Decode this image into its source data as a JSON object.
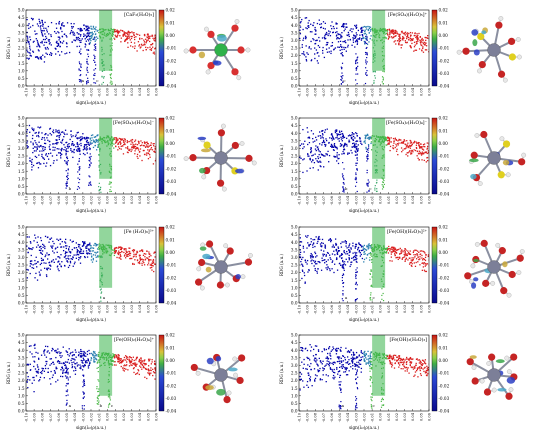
{
  "chart_data": [
    {
      "type": "scatter",
      "panel_label": "[CaF₂(H₂O)₅]",
      "xlabel": "sign(λ₂)ρ(a.u.)",
      "ylabel": "RDG (a.u.)",
      "xlim": [
        -0.1,
        0.06
      ],
      "ylim": [
        0.0,
        5.0
      ],
      "colorbar": {
        "range": [
          -0.04,
          0.02
        ],
        "ticks": [
          "0.02",
          "0.01",
          "0.00",
          "-0.01",
          "-0.02",
          "-0.03",
          "-0.04"
        ]
      },
      "spike_x": [
        -0.034,
        -0.025,
        -0.016,
        -0.006,
        0.004
      ],
      "annotations": [
        "a",
        "c"
      ],
      "colors": [
        "#0000aa",
        "#4cb848",
        "#d91f1f"
      ]
    },
    {
      "type": "scatter",
      "panel_label": "[Fe(SO₄)(H₂O)₅]⁺",
      "xlabel": "sign(λ₂)ρ(a.u.)",
      "ylabel": "RDG (a.u.)",
      "xlim": [
        -0.1,
        0.06
      ],
      "ylim": [
        0.0,
        5.0
      ],
      "colorbar": {
        "range": [
          -0.04,
          0.02
        ],
        "ticks": [
          "0.02",
          "0.01",
          "0.00",
          "-0.01",
          "-0.02",
          "-0.03",
          "-0.04"
        ]
      },
      "spike_x": [
        -0.048,
        -0.03,
        -0.018,
        -0.008,
        0.003
      ],
      "annotations": [
        "c"
      ],
      "colors": [
        "#0000aa",
        "#4cb848",
        "#d91f1f"
      ]
    },
    {
      "type": "scatter",
      "panel_label": "[Fe(SO₄)₂(H₂O)₄]⁻",
      "xlabel": "sign(λ₂)ρ(a.u.)",
      "ylabel": "RDG (a.u.)",
      "xlim": [
        -0.1,
        0.06
      ],
      "ylim": [
        0.0,
        5.0
      ],
      "colorbar": {
        "range": [
          -0.04,
          0.02
        ],
        "ticks": [
          "0.02",
          "0.01",
          "0.00",
          "-0.01",
          "-0.02",
          "-0.03",
          "-0.04"
        ]
      },
      "spike_x": [
        -0.05,
        -0.036,
        -0.022,
        -0.01,
        0.003
      ],
      "annotations": [
        "b"
      ],
      "colors": [
        "#0000aa",
        "#4cb848",
        "#d91f1f"
      ]
    },
    {
      "type": "scatter",
      "panel_label": "[Fe(SO₄)₂(H₂O)₄]⁻",
      "xlabel": "sign(λ₂)ρ(a.u.)",
      "ylabel": "RDG (a.u.)",
      "xlim": [
        -0.1,
        0.06
      ],
      "ylim": [
        0.0,
        5.0
      ],
      "colorbar": {
        "range": [
          -0.04,
          0.02
        ],
        "ticks": [
          "0.02",
          "0.01",
          "0.00",
          "-0.01",
          "-0.02",
          "-0.03",
          "-0.04"
        ]
      },
      "spike_x": [
        -0.046,
        -0.03,
        -0.016,
        -0.006,
        0.003
      ],
      "annotations": [
        "b",
        "c"
      ],
      "colors": [
        "#0000aa",
        "#4cb848",
        "#d91f1f"
      ]
    },
    {
      "type": "scatter",
      "panel_label": "[Fe (H₂O)₆]³⁺",
      "xlabel": "sign(λ₂)ρ(a.u.)",
      "ylabel": "RDG (a.u.)",
      "xlim": [
        -0.1,
        0.06
      ],
      "ylim": [
        0.0,
        5.0
      ],
      "colorbar": {
        "range": [
          -0.04,
          0.02
        ],
        "ticks": [
          "0.02",
          "0.01",
          "0.00",
          "-0.01",
          "-0.02",
          "-0.03",
          "-0.04"
        ]
      },
      "spike_x": [
        -0.008
      ],
      "annotations": [
        "a"
      ],
      "colors": [
        "#0000aa",
        "#4cb848",
        "#d91f1f"
      ]
    },
    {
      "type": "scatter",
      "panel_label": "[Fe(OH)(H₂O)₅]²⁺",
      "xlabel": "sign(λ₂)ρ(a.u.)",
      "ylabel": "RDG (a.u.)",
      "xlim": [
        -0.1,
        0.06
      ],
      "ylim": [
        0.0,
        5.0
      ],
      "colorbar": {
        "range": [
          -0.04,
          0.02
        ],
        "ticks": [
          "0.02",
          "0.01",
          "0.00",
          "-0.01",
          "-0.02",
          "-0.03",
          "-0.04"
        ]
      },
      "spike_x": [
        -0.046,
        -0.03,
        -0.012,
        0.002
      ],
      "annotations": [
        "a",
        "c"
      ],
      "colors": [
        "#0000aa",
        "#4cb848",
        "#d91f1f"
      ]
    },
    {
      "type": "scatter",
      "panel_label": "[Fe(OH)₂(H₂O)₄]⁺",
      "xlabel": "sign(λ₂)ρ(a.u.)",
      "ylabel": "RDG (a.u.)",
      "xlim": [
        -0.1,
        0.06
      ],
      "ylim": [
        0.0,
        5.0
      ],
      "colorbar": {
        "range": [
          -0.04,
          0.02
        ],
        "ticks": [
          "0.02",
          "0.01",
          "0.00",
          "-0.01",
          "-0.02",
          "-0.03",
          "-0.04"
        ]
      },
      "spike_x": [
        -0.05,
        -0.03,
        -0.012,
        0.002
      ],
      "annotations": [
        "a",
        "b",
        "c"
      ],
      "colors": [
        "#0000aa",
        "#4cb848",
        "#d91f1f"
      ]
    },
    {
      "type": "scatter",
      "panel_label": "[Fe(OH)₃(H₂O)₃]",
      "xlabel": "sign(λ₂)ρ(a.u.)",
      "ylabel": "RDG (a.u.)",
      "xlim": [
        -0.1,
        0.06
      ],
      "ylim": [
        0.0,
        5.0
      ],
      "colorbar": {
        "range": [
          -0.04,
          0.02
        ],
        "ticks": [
          "0.02",
          "0.01",
          "0.00",
          "-0.01",
          "-0.02",
          "-0.03",
          "-0.04"
        ]
      },
      "spike_x": [
        -0.05,
        -0.03,
        -0.012,
        0.002
      ],
      "annotations": [
        "a",
        "c"
      ],
      "colors": [
        "#0000aa",
        "#4cb848",
        "#d91f1f"
      ]
    }
  ]
}
